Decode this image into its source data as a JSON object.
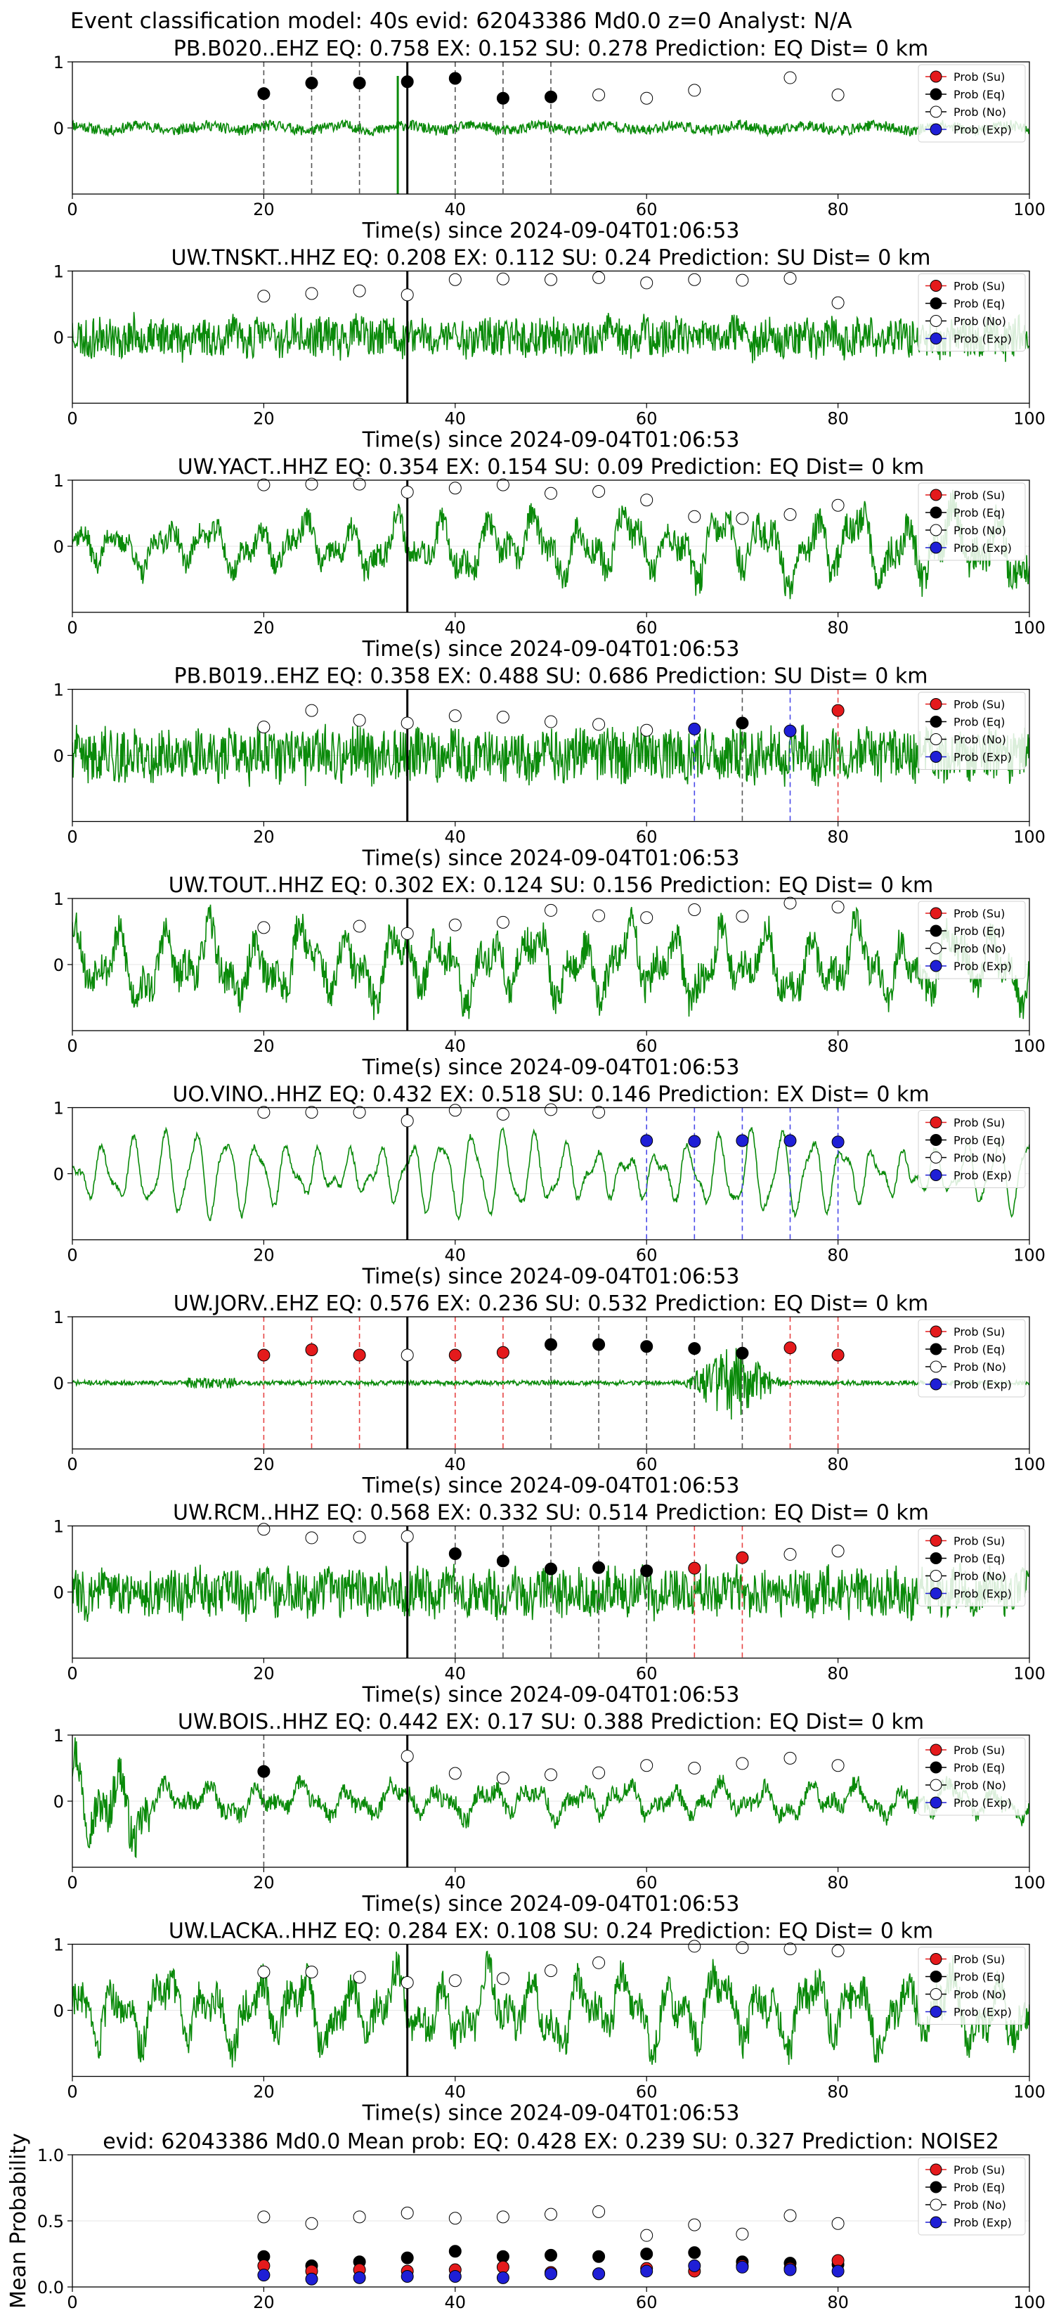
{
  "suptitle": "Event classification model: 40s evid: 62043386 Md0.0 z=0 Analyst: N/A",
  "legend_labels": [
    "Prob (Su)",
    "Prob (Eq)",
    "Prob (No)",
    "Prob (Exp)"
  ],
  "colors": {
    "su": "#e41a1c",
    "eq": "#000000",
    "no": "#ffffff",
    "exp": "#1f1fd6",
    "wave": "#0a8a0a"
  },
  "chart_data": [
    {
      "type": "line",
      "panel": "waveform",
      "title": "PB.B020..EHZ   EQ: 0.758  EX: 0.152  SU: 0.278   Prediction: EQ    Dist= 0 km",
      "xlabel": "Time(s) since 2024-09-04T01:06:53",
      "xlim": [
        0,
        100
      ],
      "ylim": [
        -1,
        1
      ],
      "xticks": [
        0,
        20,
        40,
        60,
        80,
        100
      ],
      "yticks": [
        0,
        1
      ],
      "pick_s": 35,
      "trace": {
        "style": "broadband",
        "amplitude": 0.1,
        "seed": 11,
        "spike_s": 34
      },
      "windows": [
        {
          "t": 20,
          "p": 0.52,
          "cls": "eq"
        },
        {
          "t": 25,
          "p": 0.68,
          "cls": "eq"
        },
        {
          "t": 30,
          "p": 0.68,
          "cls": "eq"
        },
        {
          "t": 35,
          "p": 0.7,
          "cls": "eq"
        },
        {
          "t": 40,
          "p": 0.75,
          "cls": "eq"
        },
        {
          "t": 45,
          "p": 0.45,
          "cls": "eq"
        },
        {
          "t": 50,
          "p": 0.47,
          "cls": "eq"
        },
        {
          "t": 55,
          "p": 0.5,
          "cls": "no"
        },
        {
          "t": 60,
          "p": 0.45,
          "cls": "no"
        },
        {
          "t": 65,
          "p": 0.57,
          "cls": "no"
        },
        {
          "t": 75,
          "p": 0.76,
          "cls": "no"
        },
        {
          "t": 80,
          "p": 0.5,
          "cls": "no"
        }
      ]
    },
    {
      "type": "line",
      "panel": "waveform",
      "title": "UW.TNSKT..HHZ   EQ: 0.208  EX: 0.112  SU: 0.24   Prediction: SU    Dist= 0 km",
      "xlabel": "Time(s) since 2024-09-04T01:06:53",
      "xlim": [
        0,
        100
      ],
      "ylim": [
        -1,
        1
      ],
      "xticks": [
        0,
        20,
        40,
        60,
        80,
        100
      ],
      "yticks": [
        0,
        1
      ],
      "pick_s": 35,
      "trace": {
        "style": "dense",
        "amplitude": 0.32,
        "seed": 23
      },
      "windows": [
        {
          "t": 20,
          "p": 0.62,
          "cls": "no"
        },
        {
          "t": 25,
          "p": 0.66,
          "cls": "no"
        },
        {
          "t": 30,
          "p": 0.7,
          "cls": "no"
        },
        {
          "t": 35,
          "p": 0.64,
          "cls": "no"
        },
        {
          "t": 40,
          "p": 0.87,
          "cls": "no"
        },
        {
          "t": 45,
          "p": 0.88,
          "cls": "no"
        },
        {
          "t": 50,
          "p": 0.87,
          "cls": "no"
        },
        {
          "t": 55,
          "p": 0.9,
          "cls": "no"
        },
        {
          "t": 60,
          "p": 0.82,
          "cls": "no"
        },
        {
          "t": 65,
          "p": 0.87,
          "cls": "no"
        },
        {
          "t": 70,
          "p": 0.86,
          "cls": "no"
        },
        {
          "t": 75,
          "p": 0.89,
          "cls": "no"
        },
        {
          "t": 80,
          "p": 0.52,
          "cls": "no"
        }
      ]
    },
    {
      "type": "line",
      "panel": "waveform",
      "title": "UW.YACT..HHZ   EQ: 0.354  EX: 0.154  SU: 0.09   Prediction: EQ    Dist= 0 km",
      "xlabel": "Time(s) since 2024-09-04T01:06:53",
      "xlim": [
        0,
        100
      ],
      "ylim": [
        -1,
        1
      ],
      "xticks": [
        0,
        20,
        40,
        60,
        80,
        100
      ],
      "yticks": [
        0,
        1
      ],
      "pick_s": 35,
      "trace": {
        "style": "wavy",
        "amplitude": 0.35,
        "seed": 37,
        "grow": 1.8
      },
      "windows": [
        {
          "t": 20,
          "p": 0.93,
          "cls": "no"
        },
        {
          "t": 25,
          "p": 0.94,
          "cls": "no"
        },
        {
          "t": 30,
          "p": 0.94,
          "cls": "no"
        },
        {
          "t": 35,
          "p": 0.82,
          "cls": "no"
        },
        {
          "t": 40,
          "p": 0.88,
          "cls": "no"
        },
        {
          "t": 45,
          "p": 0.93,
          "cls": "no"
        },
        {
          "t": 50,
          "p": 0.8,
          "cls": "no"
        },
        {
          "t": 55,
          "p": 0.83,
          "cls": "no"
        },
        {
          "t": 60,
          "p": 0.7,
          "cls": "no"
        },
        {
          "t": 65,
          "p": 0.45,
          "cls": "no"
        },
        {
          "t": 70,
          "p": 0.42,
          "cls": "no"
        },
        {
          "t": 75,
          "p": 0.48,
          "cls": "no"
        },
        {
          "t": 80,
          "p": 0.62,
          "cls": "no"
        }
      ]
    },
    {
      "type": "line",
      "panel": "waveform",
      "title": "PB.B019..EHZ   EQ: 0.358  EX: 0.488  SU: 0.686   Prediction: SU    Dist= 0 km",
      "xlabel": "Time(s) since 2024-09-04T01:06:53",
      "xlim": [
        0,
        100
      ],
      "ylim": [
        -1,
        1
      ],
      "xticks": [
        0,
        20,
        40,
        60,
        80,
        100
      ],
      "yticks": [
        0,
        1
      ],
      "pick_s": 35,
      "trace": {
        "style": "dense",
        "amplitude": 0.42,
        "seed": 41
      },
      "windows": [
        {
          "t": 20,
          "p": 0.43,
          "cls": "no"
        },
        {
          "t": 25,
          "p": 0.68,
          "cls": "no"
        },
        {
          "t": 30,
          "p": 0.53,
          "cls": "no"
        },
        {
          "t": 35,
          "p": 0.49,
          "cls": "no"
        },
        {
          "t": 40,
          "p": 0.6,
          "cls": "no"
        },
        {
          "t": 45,
          "p": 0.58,
          "cls": "no"
        },
        {
          "t": 50,
          "p": 0.51,
          "cls": "no"
        },
        {
          "t": 55,
          "p": 0.47,
          "cls": "no"
        },
        {
          "t": 60,
          "p": 0.38,
          "cls": "no"
        },
        {
          "t": 65,
          "p": 0.4,
          "cls": "exp"
        },
        {
          "t": 70,
          "p": 0.49,
          "cls": "eq"
        },
        {
          "t": 75,
          "p": 0.37,
          "cls": "exp"
        },
        {
          "t": 80,
          "p": 0.68,
          "cls": "su"
        }
      ]
    },
    {
      "type": "line",
      "panel": "waveform",
      "title": "UW.TOUT..HHZ   EQ: 0.302  EX: 0.124  SU: 0.156   Prediction: EQ    Dist= 0 km",
      "xlabel": "Time(s) since 2024-09-04T01:06:53",
      "xlim": [
        0,
        100
      ],
      "ylim": [
        -1,
        1
      ],
      "xticks": [
        0,
        20,
        40,
        60,
        80,
        100
      ],
      "yticks": [
        0,
        1
      ],
      "pick_s": 35,
      "trace": {
        "style": "wavy",
        "amplitude": 0.6,
        "seed": 53
      },
      "windows": [
        {
          "t": 20,
          "p": 0.56,
          "cls": "no"
        },
        {
          "t": 30,
          "p": 0.58,
          "cls": "no"
        },
        {
          "t": 35,
          "p": 0.47,
          "cls": "no"
        },
        {
          "t": 40,
          "p": 0.6,
          "cls": "no"
        },
        {
          "t": 45,
          "p": 0.64,
          "cls": "no"
        },
        {
          "t": 50,
          "p": 0.82,
          "cls": "no"
        },
        {
          "t": 55,
          "p": 0.74,
          "cls": "no"
        },
        {
          "t": 60,
          "p": 0.71,
          "cls": "no"
        },
        {
          "t": 65,
          "p": 0.83,
          "cls": "no"
        },
        {
          "t": 70,
          "p": 0.73,
          "cls": "no"
        },
        {
          "t": 75,
          "p": 0.93,
          "cls": "no"
        },
        {
          "t": 80,
          "p": 0.87,
          "cls": "no"
        }
      ]
    },
    {
      "type": "line",
      "panel": "waveform",
      "title": "UO.VINO..HHZ   EQ: 0.432  EX: 0.518  SU: 0.146   Prediction: EX    Dist= 0 km",
      "xlabel": "Time(s) since 2024-09-04T01:06:53",
      "xlim": [
        0,
        100
      ],
      "ylim": [
        -1,
        1
      ],
      "xticks": [
        0,
        20,
        40,
        60,
        80,
        100
      ],
      "yticks": [
        0,
        1
      ],
      "pick_s": 35,
      "trace": {
        "style": "smooth",
        "amplitude": 0.75,
        "seed": 61
      },
      "windows": [
        {
          "t": 20,
          "p": 0.93,
          "cls": "no"
        },
        {
          "t": 25,
          "p": 0.93,
          "cls": "no"
        },
        {
          "t": 30,
          "p": 0.93,
          "cls": "no"
        },
        {
          "t": 35,
          "p": 0.8,
          "cls": "no"
        },
        {
          "t": 40,
          "p": 0.96,
          "cls": "no"
        },
        {
          "t": 45,
          "p": 0.9,
          "cls": "no"
        },
        {
          "t": 50,
          "p": 0.97,
          "cls": "no"
        },
        {
          "t": 55,
          "p": 0.93,
          "cls": "no"
        },
        {
          "t": 60,
          "p": 0.5,
          "cls": "exp"
        },
        {
          "t": 65,
          "p": 0.49,
          "cls": "exp"
        },
        {
          "t": 70,
          "p": 0.5,
          "cls": "exp"
        },
        {
          "t": 75,
          "p": 0.5,
          "cls": "exp"
        },
        {
          "t": 80,
          "p": 0.48,
          "cls": "exp"
        }
      ]
    },
    {
      "type": "line",
      "panel": "waveform",
      "title": "UW.JORV..EHZ   EQ: 0.576  EX: 0.236  SU: 0.532   Prediction: EQ    Dist= 0 km",
      "xlabel": "Time(s) since 2024-09-04T01:06:53",
      "xlim": [
        0,
        100
      ],
      "ylim": [
        -1,
        1
      ],
      "xticks": [
        0,
        20,
        40,
        60,
        80,
        100
      ],
      "yticks": [
        0,
        1
      ],
      "pick_s": 35,
      "trace": {
        "style": "quiet",
        "amplitude": 0.05,
        "seed": 71,
        "burst": [
          64,
          74,
          0.8
        ],
        "small_burst": [
          12,
          17,
          0.12
        ]
      },
      "windows": [
        {
          "t": 20,
          "p": 0.42,
          "cls": "su"
        },
        {
          "t": 25,
          "p": 0.5,
          "cls": "su"
        },
        {
          "t": 30,
          "p": 0.42,
          "cls": "su"
        },
        {
          "t": 35,
          "p": 0.42,
          "cls": "no"
        },
        {
          "t": 40,
          "p": 0.42,
          "cls": "su"
        },
        {
          "t": 45,
          "p": 0.46,
          "cls": "su"
        },
        {
          "t": 50,
          "p": 0.58,
          "cls": "eq"
        },
        {
          "t": 55,
          "p": 0.58,
          "cls": "eq"
        },
        {
          "t": 60,
          "p": 0.55,
          "cls": "eq"
        },
        {
          "t": 65,
          "p": 0.52,
          "cls": "eq"
        },
        {
          "t": 70,
          "p": 0.45,
          "cls": "eq"
        },
        {
          "t": 75,
          "p": 0.53,
          "cls": "su"
        },
        {
          "t": 80,
          "p": 0.42,
          "cls": "su"
        }
      ]
    },
    {
      "type": "line",
      "panel": "waveform",
      "title": "UW.RCM..HHZ   EQ: 0.568  EX: 0.332  SU: 0.514   Prediction: EQ    Dist= 0 km",
      "xlabel": "Time(s) since 2024-09-04T01:06:53",
      "xlim": [
        0,
        100
      ],
      "ylim": [
        -1,
        1
      ],
      "xticks": [
        0,
        20,
        40,
        60,
        80,
        100
      ],
      "yticks": [
        0,
        1
      ],
      "pick_s": 35,
      "trace": {
        "style": "dense",
        "amplitude": 0.38,
        "seed": 83
      },
      "windows": [
        {
          "t": 20,
          "p": 0.95,
          "cls": "no"
        },
        {
          "t": 25,
          "p": 0.82,
          "cls": "no"
        },
        {
          "t": 30,
          "p": 0.83,
          "cls": "no"
        },
        {
          "t": 35,
          "p": 0.84,
          "cls": "no"
        },
        {
          "t": 40,
          "p": 0.58,
          "cls": "eq"
        },
        {
          "t": 45,
          "p": 0.47,
          "cls": "eq"
        },
        {
          "t": 50,
          "p": 0.35,
          "cls": "eq"
        },
        {
          "t": 55,
          "p": 0.37,
          "cls": "eq"
        },
        {
          "t": 60,
          "p": 0.32,
          "cls": "eq"
        },
        {
          "t": 65,
          "p": 0.36,
          "cls": "su"
        },
        {
          "t": 70,
          "p": 0.52,
          "cls": "su"
        },
        {
          "t": 75,
          "p": 0.57,
          "cls": "no"
        },
        {
          "t": 80,
          "p": 0.62,
          "cls": "no"
        }
      ]
    },
    {
      "type": "line",
      "panel": "waveform",
      "title": "UW.BOIS..HHZ   EQ: 0.442  EX: 0.17  SU: 0.388   Prediction: EQ    Dist= 0 km",
      "xlabel": "Time(s) since 2024-09-04T01:06:53",
      "xlim": [
        0,
        100
      ],
      "ylim": [
        -1,
        1
      ],
      "xticks": [
        0,
        20,
        40,
        60,
        80,
        100
      ],
      "yticks": [
        0,
        1
      ],
      "pick_s": 35,
      "trace": {
        "style": "wavy",
        "amplitude": 0.28,
        "seed": 97,
        "early_boost": [
          0,
          8,
          2.5
        ]
      },
      "windows": [
        {
          "t": 20,
          "p": 0.45,
          "cls": "eq"
        },
        {
          "t": 35,
          "p": 0.68,
          "cls": "no"
        },
        {
          "t": 40,
          "p": 0.42,
          "cls": "no"
        },
        {
          "t": 45,
          "p": 0.35,
          "cls": "no"
        },
        {
          "t": 50,
          "p": 0.4,
          "cls": "no"
        },
        {
          "t": 55,
          "p": 0.43,
          "cls": "no"
        },
        {
          "t": 60,
          "p": 0.54,
          "cls": "no"
        },
        {
          "t": 65,
          "p": 0.5,
          "cls": "no"
        },
        {
          "t": 70,
          "p": 0.57,
          "cls": "no"
        },
        {
          "t": 75,
          "p": 0.65,
          "cls": "no"
        },
        {
          "t": 80,
          "p": 0.54,
          "cls": "no"
        }
      ]
    },
    {
      "type": "line",
      "panel": "waveform",
      "title": "UW.LACKA..HHZ   EQ: 0.284  EX: 0.108  SU: 0.24   Prediction: EQ    Dist= 0 km",
      "xlabel": "Time(s) since 2024-09-04T01:06:53",
      "xlim": [
        0,
        100
      ],
      "ylim": [
        -1,
        1
      ],
      "xticks": [
        0,
        20,
        40,
        60,
        80,
        100
      ],
      "yticks": [
        0,
        1
      ],
      "pick_s": 35,
      "trace": {
        "style": "wavy",
        "amplitude": 0.6,
        "seed": 103
      },
      "windows": [
        {
          "t": 20,
          "p": 0.58,
          "cls": "no"
        },
        {
          "t": 25,
          "p": 0.58,
          "cls": "no"
        },
        {
          "t": 30,
          "p": 0.5,
          "cls": "no"
        },
        {
          "t": 35,
          "p": 0.42,
          "cls": "no"
        },
        {
          "t": 40,
          "p": 0.45,
          "cls": "no"
        },
        {
          "t": 45,
          "p": 0.48,
          "cls": "no"
        },
        {
          "t": 50,
          "p": 0.6,
          "cls": "no"
        },
        {
          "t": 55,
          "p": 0.72,
          "cls": "no"
        },
        {
          "t": 65,
          "p": 0.97,
          "cls": "no"
        },
        {
          "t": 70,
          "p": 0.95,
          "cls": "no"
        },
        {
          "t": 75,
          "p": 0.93,
          "cls": "no"
        },
        {
          "t": 80,
          "p": 0.9,
          "cls": "no"
        }
      ]
    },
    {
      "type": "scatter",
      "panel": "mean",
      "title": "evid: 62043386  Md0.0   Mean prob:   EQ: 0.428  EX: 0.239  SU: 0.327   Prediction: NOISE2",
      "ylabel": "Mean Probability",
      "xlim": [
        0,
        100
      ],
      "ylim": [
        0,
        1
      ],
      "xticks": [
        0,
        20,
        40,
        60,
        80,
        100
      ],
      "yticks": [
        0.0,
        0.5,
        1.0
      ],
      "x": [
        20,
        25,
        30,
        35,
        40,
        45,
        50,
        55,
        60,
        65,
        70,
        75,
        80
      ],
      "series": [
        {
          "name": "Prob (No)",
          "cls": "no",
          "values": [
            0.53,
            0.48,
            0.53,
            0.56,
            0.52,
            0.53,
            0.55,
            0.57,
            0.39,
            0.47,
            0.4,
            0.54,
            0.48
          ]
        },
        {
          "name": "Prob (Eq)",
          "cls": "eq",
          "values": [
            0.23,
            0.16,
            0.19,
            0.22,
            0.27,
            0.23,
            0.24,
            0.23,
            0.25,
            0.26,
            0.19,
            0.18,
            0.17
          ]
        },
        {
          "name": "Prob (Su)",
          "cls": "su",
          "values": [
            0.16,
            0.12,
            0.13,
            0.12,
            0.13,
            0.15,
            0.11,
            0.1,
            0.14,
            0.12,
            0.16,
            0.14,
            0.2
          ]
        },
        {
          "name": "Prob (Exp)",
          "cls": "exp",
          "values": [
            0.09,
            0.06,
            0.07,
            0.08,
            0.08,
            0.07,
            0.1,
            0.1,
            0.12,
            0.16,
            0.15,
            0.13,
            0.12
          ]
        }
      ]
    }
  ]
}
